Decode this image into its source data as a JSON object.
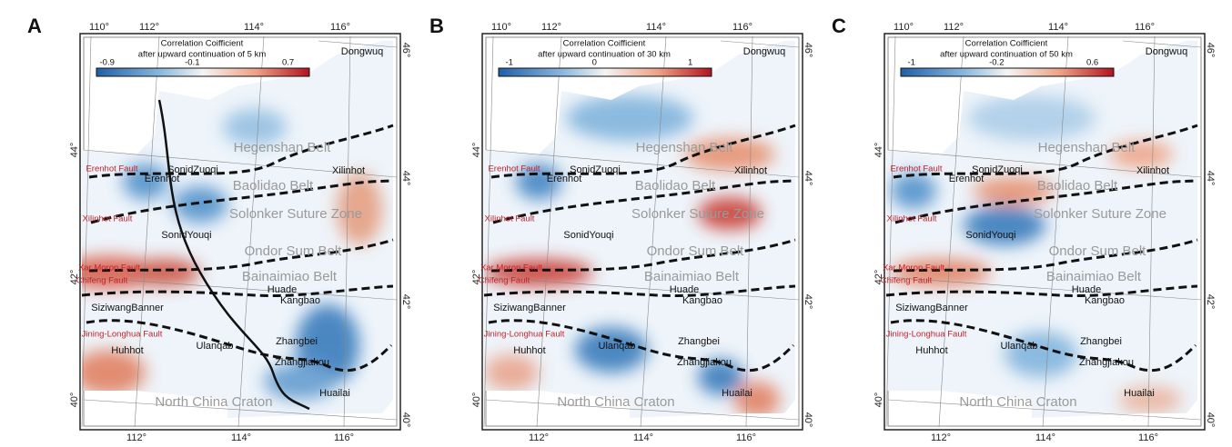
{
  "panels": [
    {
      "letter": "A",
      "colorbar": {
        "title": [
          "Correlation Coifficient",
          "after upward continuation of 5 km"
        ],
        "ticks": [
          "-0.9",
          "-0.1",
          "0.7"
        ]
      }
    },
    {
      "letter": "B",
      "colorbar": {
        "title": [
          "Correlation Coifficient",
          "after upward continuation of 30 km"
        ],
        "ticks": [
          "-1",
          "0",
          "1"
        ]
      }
    },
    {
      "letter": "C",
      "colorbar": {
        "title": [
          "Correlation Coifficient",
          "after upward continuation of 50 km"
        ],
        "ticks": [
          "-1",
          "-0.2",
          "0.6"
        ]
      }
    }
  ],
  "top_longitudes": [
    "110°",
    "112°",
    "114°",
    "116°"
  ],
  "bottom_longitudes": [
    "112°",
    "114°",
    "116°"
  ],
  "left_latitudes": [
    "44°",
    "42°",
    "40°"
  ],
  "right_latitudes": [
    "46°",
    "44°",
    "42°",
    "40°"
  ],
  "places": [
    "Dongwuq",
    "Erenhot",
    "SonidZuoqi",
    "Xilinhot",
    "SonidYouqi",
    "Huade",
    "Kangbao",
    "SiziwangBanner",
    "Huhhot",
    "Ulanqab",
    "Zhangbei",
    "Zhangjiakou",
    "Huailai"
  ],
  "belts": [
    "Hegenshan Belt",
    "Baolidao Belt",
    "Solonker Suture Zone",
    "Ondor Sum Belt",
    "Bainaimiao Belt",
    "North China Craton"
  ],
  "faults": [
    "Erenhot Fault",
    "Xilinhot Fault",
    "Xar Moron Fault",
    "Chifeng Fault",
    "Jining-Longhua Fault"
  ]
}
